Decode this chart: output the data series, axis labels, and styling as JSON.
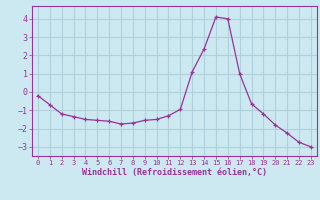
{
  "x": [
    0,
    1,
    2,
    3,
    4,
    5,
    6,
    7,
    8,
    9,
    10,
    11,
    12,
    13,
    14,
    15,
    16,
    17,
    18,
    19,
    20,
    21,
    22,
    23
  ],
  "y": [
    -0.2,
    -0.7,
    -1.2,
    -1.35,
    -1.5,
    -1.55,
    -1.6,
    -1.75,
    -1.7,
    -1.55,
    -1.5,
    -1.3,
    -0.95,
    1.1,
    2.35,
    4.1,
    4.0,
    1.0,
    -0.65,
    -1.2,
    -1.8,
    -2.25,
    -2.75,
    -3.0
  ],
  "line_color": "#993399",
  "marker": "+",
  "marker_color": "#993399",
  "bg_color": "#cce8f0",
  "grid_color": "#b0d0dc",
  "xlabel": "Windchill (Refroidissement éolien,°C)",
  "xlabel_color": "#993399",
  "tick_color": "#993399",
  "ylim": [
    -3.5,
    4.7
  ],
  "yticks": [
    -3,
    -2,
    -1,
    0,
    1,
    2,
    3,
    4
  ],
  "xticks": [
    0,
    1,
    2,
    3,
    4,
    5,
    6,
    7,
    8,
    9,
    10,
    11,
    12,
    13,
    14,
    15,
    16,
    17,
    18,
    19,
    20,
    21,
    22,
    23
  ],
  "title": ""
}
